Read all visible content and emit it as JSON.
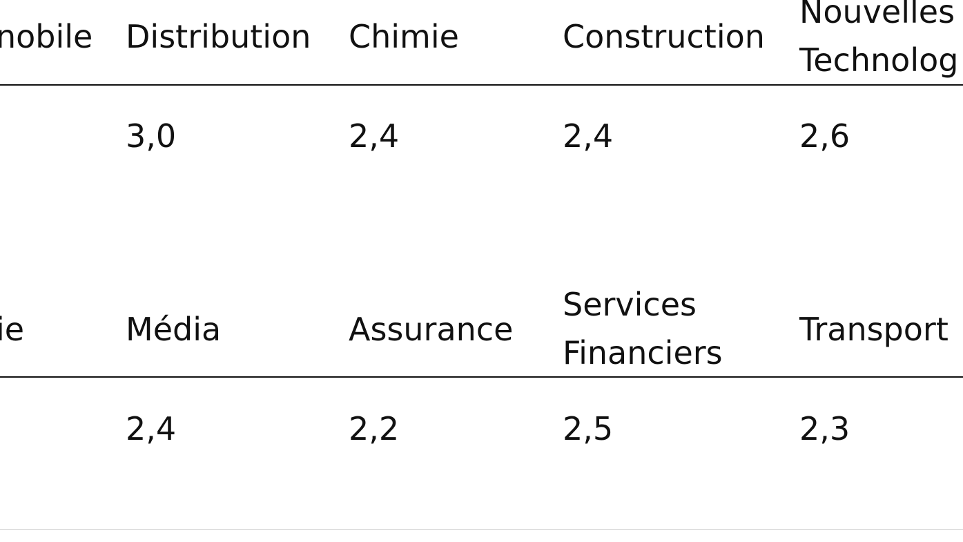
{
  "table_block_1": {
    "headers": [
      {
        "label": "nobile"
      },
      {
        "label": "Distribution"
      },
      {
        "label": "Chimie"
      },
      {
        "label": "Construction"
      },
      {
        "label_line1": "Nouvelles",
        "label_line2": "Technolog"
      }
    ],
    "values": [
      "",
      "3,0",
      "2,4",
      "2,4",
      "2,6"
    ]
  },
  "table_block_2": {
    "headers": [
      {
        "label": "ie"
      },
      {
        "label": "Média"
      },
      {
        "label": "Assurance"
      },
      {
        "label_line1": "Services",
        "label_line2": "Financiers"
      },
      {
        "label": "Transport"
      }
    ],
    "values": [
      "",
      "2,4",
      "2,2",
      "2,5",
      "2,3"
    ]
  }
}
